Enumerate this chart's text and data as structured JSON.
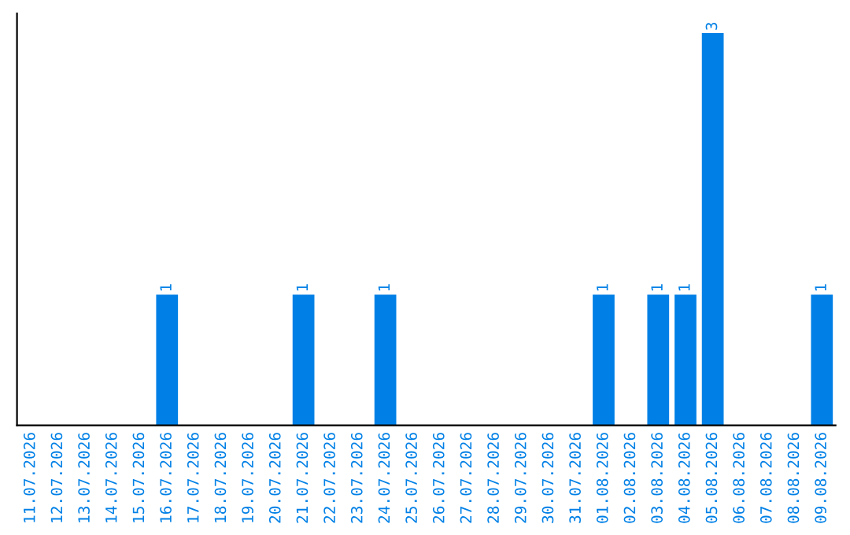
{
  "chart_data": {
    "type": "bar",
    "categories": [
      "11.07.2026",
      "12.07.2026",
      "13.07.2026",
      "14.07.2026",
      "15.07.2026",
      "16.07.2026",
      "17.07.2026",
      "18.07.2026",
      "19.07.2026",
      "20.07.2026",
      "21.07.2026",
      "22.07.2026",
      "23.07.2026",
      "24.07.2026",
      "25.07.2026",
      "26.07.2026",
      "27.07.2026",
      "28.07.2026",
      "29.07.2026",
      "30.07.2026",
      "31.07.2026",
      "01.08.2026",
      "02.08.2026",
      "03.08.2026",
      "04.08.2026",
      "05.08.2026",
      "06.08.2026",
      "07.08.2026",
      "08.08.2026",
      "09.08.2026"
    ],
    "values": [
      0,
      0,
      0,
      0,
      0,
      1,
      0,
      0,
      0,
      0,
      1,
      0,
      0,
      1,
      0,
      0,
      0,
      0,
      0,
      0,
      0,
      1,
      0,
      1,
      1,
      3,
      0,
      0,
      0,
      1
    ],
    "value_labels": [
      null,
      null,
      null,
      null,
      null,
      "1",
      null,
      null,
      null,
      null,
      "1",
      null,
      null,
      "1",
      null,
      null,
      null,
      null,
      null,
      null,
      null,
      "1",
      null,
      "1",
      "1",
      "3",
      null,
      null,
      null,
      "1"
    ],
    "color": "#0080e6",
    "tick_labels": "x",
    "grid": false,
    "legend": false
  }
}
